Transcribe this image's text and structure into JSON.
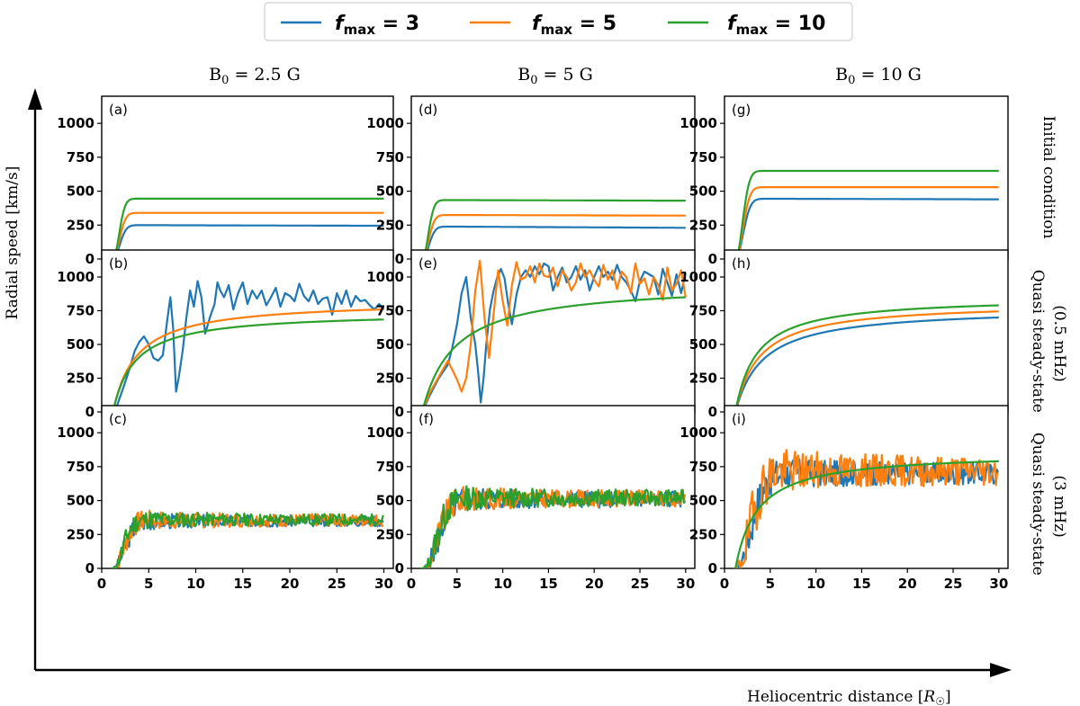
{
  "colors": {
    "f3": "#1f77b4",
    "f5": "#ff7f0e",
    "f10": "#2ca02c"
  },
  "legend": [
    {
      "key": "f3",
      "prefix": "f",
      "sub": "max",
      "suffix": " = 3"
    },
    {
      "key": "f5",
      "prefix": "f",
      "sub": "max",
      "suffix": " = 5"
    },
    {
      "key": "f10",
      "prefix": "f",
      "sub": "max",
      "suffix": " = 10"
    }
  ],
  "axes": {
    "ylabel": "Radial speed [km/s]",
    "xlabel_text": "Heliocentric distance [",
    "xlabel_symbol": "R",
    "xlabel_sub": "☉",
    "xlabel_end": "]"
  },
  "column_titles": [
    {
      "base": "B",
      "sub": "0",
      "rest": " = 2.5 G"
    },
    {
      "base": "B",
      "sub": "0",
      "rest": " = 5 G"
    },
    {
      "base": "B",
      "sub": "0",
      "rest": " = 10 G"
    }
  ],
  "row_titles": [
    [
      "Initial condition"
    ],
    [
      "Quasi steady-state",
      "(0.5 mHz)"
    ],
    [
      "Quasi steady-state",
      "(3 mHz)"
    ]
  ],
  "chart_data": {
    "type": "line",
    "layout": "3x3 grid",
    "xlim": [
      0,
      31
    ],
    "ylim": [
      0,
      1200
    ],
    "xticks": [
      0,
      5,
      10,
      15,
      20,
      25,
      30
    ],
    "yticks": [
      0,
      250,
      500,
      750,
      1000
    ],
    "x_tick_rows": [
      2
    ],
    "panels": [
      {
        "label": "(a)",
        "row": 0,
        "col": 0,
        "series": [
          {
            "key": "f3",
            "name": "f_max = 3",
            "kind": "smooth",
            "start": 1.2,
            "scale": 1.2,
            "vmax": 250,
            "end": 245
          },
          {
            "key": "f5",
            "name": "f_max = 5",
            "kind": "smooth",
            "start": 1.2,
            "scale": 1.15,
            "vmax": 340,
            "end": 340
          },
          {
            "key": "f10",
            "name": "f_max = 10",
            "kind": "smooth",
            "start": 1.2,
            "scale": 1.1,
            "vmax": 445,
            "end": 445
          }
        ]
      },
      {
        "label": "(d)",
        "row": 0,
        "col": 1,
        "series": [
          {
            "key": "f3",
            "name": "f_max = 3",
            "kind": "smooth",
            "start": 1.2,
            "scale": 1.2,
            "vmax": 240,
            "end": 230
          },
          {
            "key": "f5",
            "name": "f_max = 5",
            "kind": "smooth",
            "start": 1.2,
            "scale": 1.15,
            "vmax": 325,
            "end": 320
          },
          {
            "key": "f10",
            "name": "f_max = 10",
            "kind": "smooth",
            "start": 1.2,
            "scale": 1.1,
            "vmax": 435,
            "end": 430
          }
        ]
      },
      {
        "label": "(g)",
        "row": 0,
        "col": 2,
        "series": [
          {
            "key": "f3",
            "name": "f_max = 3",
            "kind": "smooth",
            "start": 1.2,
            "scale": 1.4,
            "vmax": 445,
            "end": 440
          },
          {
            "key": "f5",
            "name": "f_max = 5",
            "kind": "smooth",
            "start": 1.2,
            "scale": 1.35,
            "vmax": 530,
            "end": 530
          },
          {
            "key": "f10",
            "name": "f_max = 10",
            "kind": "smooth",
            "start": 1.2,
            "scale": 1.3,
            "vmax": 650,
            "end": 650
          }
        ]
      },
      {
        "label": "(b)",
        "row": 1,
        "col": 0,
        "series": [
          {
            "key": "f3",
            "name": "f_max = 3",
            "kind": "points",
            "x": [
              1.2,
              1.6,
              2,
              2.5,
              3,
              3.5,
              4,
              4.5,
              5,
              5.5,
              6,
              6.5,
              7,
              7.3,
              7.6,
              7.9,
              8.2,
              8.6,
              9,
              9.4,
              9.8,
              10.2,
              10.6,
              11,
              11.5,
              12,
              12.3,
              12.6,
              13,
              13.5,
              14,
              14.5,
              15,
              15.5,
              16,
              16.5,
              17,
              17.5,
              18,
              18.5,
              19,
              19.5,
              20,
              20.5,
              21,
              21.5,
              22,
              22.5,
              23,
              23.5,
              24,
              24.5,
              25,
              25.5,
              26,
              26.5,
              27,
              27.5,
              28,
              28.5,
              29,
              29.5,
              30
            ],
            "y": [
              0,
              40,
              120,
              220,
              330,
              450,
              520,
              560,
              500,
              400,
              380,
              420,
              700,
              850,
              620,
              150,
              260,
              450,
              700,
              900,
              780,
              970,
              850,
              580,
              700,
              800,
              960,
              900,
              850,
              940,
              760,
              880,
              960,
              800,
              900,
              840,
              900,
              790,
              850,
              920,
              780,
              880,
              860,
              820,
              950,
              860,
              820,
              900,
              800,
              840,
              850,
              720,
              880,
              800,
              900,
              780,
              860,
              820,
              830,
              790,
              760,
              800,
              760
            ]
          },
          {
            "key": "f5",
            "name": "f_max = 5",
            "kind": "smooth",
            "start": 1.2,
            "scale": 2.5,
            "vmax": 820,
            "end": 760,
            "bend": 1.0
          },
          {
            "key": "f10",
            "name": "f_max = 10",
            "kind": "smooth",
            "start": 1.2,
            "scale": 2.3,
            "vmax": 720,
            "end": 685,
            "bend": 1.0
          }
        ]
      },
      {
        "label": "(e)",
        "row": 1,
        "col": 1,
        "series": [
          {
            "key": "f3",
            "name": "f_max = 3",
            "kind": "points",
            "x": [
              1.2,
              2,
              3,
              4,
              4.5,
              5,
              5.5,
              6,
              6.5,
              7,
              7.3,
              7.6,
              7.9,
              8.2,
              8.6,
              9,
              9.4,
              9.8,
              10.2,
              10.6,
              11,
              11.5,
              12,
              12.5,
              13,
              13.5,
              14,
              14.5,
              15,
              15.5,
              16,
              16.5,
              17,
              17.5,
              18,
              18.5,
              19,
              19.5,
              20,
              20.5,
              21,
              21.5,
              22,
              22.5,
              23,
              23.5,
              24,
              24.5,
              25,
              25.5,
              26,
              26.5,
              27,
              27.5,
              28,
              28.5,
              29,
              29.5,
              30
            ],
            "y": [
              0,
              120,
              250,
              350,
              480,
              650,
              880,
              1000,
              700,
              500,
              300,
              70,
              250,
              500,
              760,
              900,
              1000,
              1060,
              990,
              800,
              650,
              870,
              1000,
              1050,
              1000,
              1080,
              1020,
              1100,
              1080,
              900,
              1000,
              1070,
              960,
              1000,
              1080,
              980,
              1050,
              900,
              1000,
              1080,
              1000,
              1040,
              980,
              1090,
              1000,
              960,
              900,
              820,
              970,
              1040,
              1020,
              1000,
              870,
              1060,
              960,
              860,
              1020,
              880,
              1030
            ]
          },
          {
            "key": "f5",
            "name": "f_max = 5",
            "kind": "points",
            "x": [
              1.2,
              2,
              3,
              4,
              5,
              5.5,
              6,
              6.5,
              7,
              7.5,
              8,
              8.5,
              9,
              9.5,
              10,
              10.5,
              11,
              11.5,
              12,
              12.5,
              13,
              13.5,
              14,
              14.5,
              15,
              15.5,
              16,
              16.5,
              17,
              17.5,
              18,
              18.5,
              19,
              19.5,
              20,
              20.5,
              21,
              21.5,
              22,
              22.5,
              23,
              23.5,
              24,
              24.5,
              25,
              25.5,
              26,
              26.5,
              27,
              27.5,
              28,
              28.5,
              29,
              29.5,
              30
            ],
            "y": [
              0,
              140,
              260,
              380,
              240,
              150,
              250,
              500,
              900,
              1120,
              700,
              400,
              730,
              1050,
              820,
              640,
              940,
              1110,
              980,
              1000,
              1080,
              960,
              1100,
              1010,
              1000,
              1070,
              930,
              1050,
              1000,
              900,
              960,
              1100,
              1000,
              1050,
              980,
              930,
              1090,
              980,
              1050,
              910,
              1040,
              1000,
              880,
              1100,
              950,
              990,
              870,
              1000,
              940,
              830,
              1070,
              900,
              950,
              1050,
              850
            ]
          },
          {
            "key": "f10",
            "name": "f_max = 10",
            "kind": "smooth",
            "start": 1.2,
            "scale": 3.5,
            "vmax": 930,
            "end": 850,
            "bend": 1.0
          }
        ]
      },
      {
        "label": "(h)",
        "row": 1,
        "col": 2,
        "series": [
          {
            "key": "f3",
            "name": "f_max = 3",
            "kind": "smooth",
            "start": 1.2,
            "scale": 3.0,
            "vmax": 810,
            "end": 700,
            "bend": 1.0
          },
          {
            "key": "f5",
            "name": "f_max = 5",
            "kind": "smooth",
            "start": 1.2,
            "scale": 2.6,
            "vmax": 830,
            "end": 745,
            "bend": 1.0
          },
          {
            "key": "f10",
            "name": "f_max = 10",
            "kind": "smooth",
            "start": 1.2,
            "scale": 2.3,
            "vmax": 860,
            "end": 790,
            "bend": 1.0
          }
        ]
      },
      {
        "label": "(c)",
        "row": 2,
        "col": 0,
        "series": [
          {
            "key": "f3",
            "name": "f_max = 3",
            "kind": "noisy",
            "start": 1.2,
            "scale": 1.8,
            "vmax": 350,
            "amp": 40,
            "seed": 3
          },
          {
            "key": "f5",
            "name": "f_max = 5",
            "kind": "noisy",
            "start": 1.2,
            "scale": 1.7,
            "vmax": 355,
            "amp": 45,
            "seed": 7
          },
          {
            "key": "f10",
            "name": "f_max = 10",
            "kind": "noisy",
            "start": 1.2,
            "scale": 1.6,
            "vmax": 360,
            "amp": 42,
            "seed": 11
          }
        ]
      },
      {
        "label": "(f)",
        "row": 2,
        "col": 1,
        "series": [
          {
            "key": "f3",
            "name": "f_max = 3",
            "kind": "noisy",
            "start": 1.3,
            "scale": 2.4,
            "vmax": 510,
            "amp": 60,
            "seed": 5
          },
          {
            "key": "f5",
            "name": "f_max = 5",
            "kind": "noisy",
            "start": 1.3,
            "scale": 2.3,
            "vmax": 515,
            "amp": 60,
            "seed": 9
          },
          {
            "key": "f10",
            "name": "f_max = 10",
            "kind": "noisy",
            "start": 1.3,
            "scale": 2.2,
            "vmax": 520,
            "amp": 60,
            "seed": 13
          }
        ]
      },
      {
        "label": "(i)",
        "row": 2,
        "col": 2,
        "series": [
          {
            "key": "f3",
            "name": "f_max = 3",
            "kind": "noisy",
            "start": 1.2,
            "scale": 2.5,
            "vmax": 700,
            "amp": 80,
            "seed": 17
          },
          {
            "key": "f5",
            "name": "f_max = 5",
            "kind": "noisy",
            "start": 1.2,
            "scale": 2.4,
            "vmax": 720,
            "amp": 110,
            "seed": 19
          },
          {
            "key": "f10",
            "name": "f_max = 10",
            "kind": "smooth",
            "start": 1.2,
            "scale": 2.4,
            "vmax": 790,
            "end": 790,
            "bend": 1.0
          }
        ]
      }
    ]
  }
}
